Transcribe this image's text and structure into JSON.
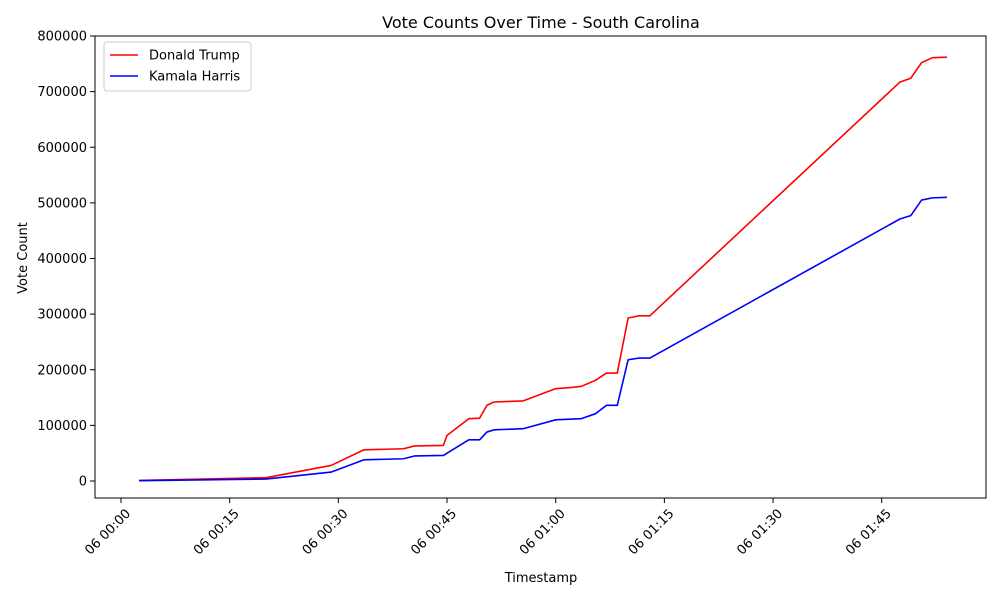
{
  "chart_data": {
    "type": "line",
    "title": "Vote Counts Over Time - South Carolina",
    "xlabel": "Timestamp",
    "ylabel": "Vote Count",
    "x_unit": "time (minutes after 00:00 on day 06)",
    "xlim": [
      "06 00:00",
      "06 01:55"
    ],
    "ylim": [
      0,
      800000
    ],
    "grid": false,
    "legend_position": "top-left",
    "x_ticks": [
      {
        "t": "06 00:00",
        "label": "06 00:00"
      },
      {
        "t": "06 00:15",
        "label": "06 00:15"
      },
      {
        "t": "06 00:30",
        "label": "06 00:30"
      },
      {
        "t": "06 00:45",
        "label": "06 00:45"
      },
      {
        "t": "06 01:00",
        "label": "06 01:00"
      },
      {
        "t": "06 01:15",
        "label": "06 01:15"
      },
      {
        "t": "06 01:30",
        "label": "06 01:30"
      },
      {
        "t": "06 01:45",
        "label": "06 01:45"
      }
    ],
    "y_ticks": [
      {
        "v": 0,
        "label": "0"
      },
      {
        "v": 100000,
        "label": "100000"
      },
      {
        "v": 200000,
        "label": "200000"
      },
      {
        "v": 300000,
        "label": "300000"
      },
      {
        "v": 400000,
        "label": "400000"
      },
      {
        "v": 500000,
        "label": "500000"
      },
      {
        "v": 600000,
        "label": "600000"
      },
      {
        "v": 700000,
        "label": "700000"
      },
      {
        "v": 800000,
        "label": "800000"
      }
    ],
    "series": [
      {
        "name": "Donald Trump",
        "color": "#ff0000",
        "points": [
          [
            "06 00:02:30",
            1000
          ],
          [
            "06 00:20:00",
            6000
          ],
          [
            "06 00:29:00",
            28000
          ],
          [
            "06 00:33:30",
            56000
          ],
          [
            "06 00:39:00",
            58000
          ],
          [
            "06 00:40:30",
            63000
          ],
          [
            "06 00:44:30",
            64000
          ],
          [
            "06 00:45:00",
            82000
          ],
          [
            "06 00:48:00",
            112000
          ],
          [
            "06 00:49:30",
            113000
          ],
          [
            "06 00:50:30",
            136000
          ],
          [
            "06 00:51:30",
            142000
          ],
          [
            "06 00:55:30",
            144000
          ],
          [
            "06 01:00:00",
            166000
          ],
          [
            "06 01:02:00",
            168000
          ],
          [
            "06 01:03:30",
            170000
          ],
          [
            "06 01:05:30",
            181000
          ],
          [
            "06 01:07:00",
            194000
          ],
          [
            "06 01:08:30",
            194000
          ],
          [
            "06 01:10:00",
            293000
          ],
          [
            "06 01:11:30",
            297000
          ],
          [
            "06 01:13:00",
            297000
          ],
          [
            "06 01:47:30",
            717000
          ],
          [
            "06 01:49:00",
            724000
          ],
          [
            "06 01:50:30",
            752000
          ],
          [
            "06 01:52:00",
            761000
          ],
          [
            "06 01:54:00",
            762000
          ]
        ]
      },
      {
        "name": "Kamala Harris",
        "color": "#0000ff",
        "points": [
          [
            "06 00:02:30",
            500
          ],
          [
            "06 00:20:00",
            3500
          ],
          [
            "06 00:29:00",
            16000
          ],
          [
            "06 00:33:30",
            38000
          ],
          [
            "06 00:39:00",
            40000
          ],
          [
            "06 00:40:30",
            45000
          ],
          [
            "06 00:44:30",
            46000
          ],
          [
            "06 00:48:00",
            74000
          ],
          [
            "06 00:49:30",
            74000
          ],
          [
            "06 00:50:30",
            88000
          ],
          [
            "06 00:51:30",
            92000
          ],
          [
            "06 00:55:30",
            94000
          ],
          [
            "06 01:00:00",
            110000
          ],
          [
            "06 01:03:30",
            112000
          ],
          [
            "06 01:05:30",
            121000
          ],
          [
            "06 01:07:00",
            136000
          ],
          [
            "06 01:08:30",
            136000
          ],
          [
            "06 01:10:00",
            218000
          ],
          [
            "06 01:11:30",
            221000
          ],
          [
            "06 01:13:00",
            221000
          ],
          [
            "06 01:47:30",
            471000
          ],
          [
            "06 01:49:00",
            477000
          ],
          [
            "06 01:50:30",
            505000
          ],
          [
            "06 01:52:00",
            509000
          ],
          [
            "06 01:54:00",
            510000
          ]
        ]
      }
    ]
  }
}
